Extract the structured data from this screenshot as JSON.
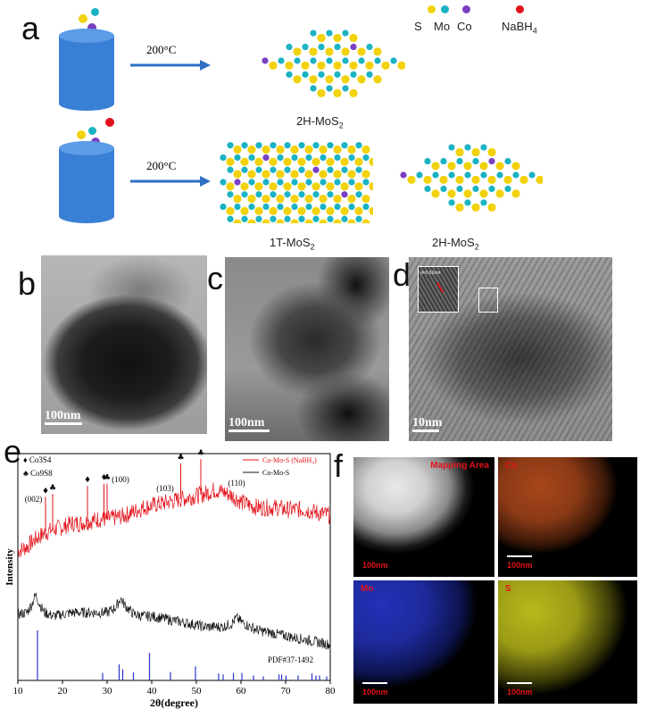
{
  "panel_a": {
    "letter": "a",
    "legend": {
      "s": "S",
      "mo": "Mo",
      "co": "Co",
      "nabh4": "NaBH",
      "nabh4_sub": "4"
    },
    "row1": {
      "temp": "200°C",
      "product_label": "2H-MoS",
      "product_sub": "2"
    },
    "row2": {
      "temp": "200°C",
      "product1_label": "1T-MoS",
      "product1_sub": "2",
      "product2_label": "2H-MoS",
      "product2_sub": "2"
    },
    "colors": {
      "S": "#f2d20c",
      "Mo": "#1ab3c4",
      "Co": "#7a3fc2",
      "NaBH4": "#e3121a",
      "cylinder": "#3a7fd6",
      "arrow": "#2f6fc4"
    }
  },
  "panel_b": {
    "letter": "b",
    "scale": "100nm"
  },
  "panel_c": {
    "letter": "c",
    "scale": "100nm"
  },
  "panel_d": {
    "letter": "d",
    "scale": "10nm",
    "inset_label": "d=0.62nm"
  },
  "panel_e": {
    "letter": "e"
  },
  "panel_f": {
    "letter": "f",
    "maps": [
      {
        "title": "Mapping Area",
        "scale": "100nm",
        "tint": "gray"
      },
      {
        "title": "Co",
        "scale": "100nm",
        "tint": "#c4531a"
      },
      {
        "title": "Mo",
        "scale": "100nm",
        "tint": "#2a35c9"
      },
      {
        "title": "S",
        "scale": "100nm",
        "tint": "#c8c81a"
      }
    ]
  },
  "chart_data": {
    "type": "line",
    "xlabel": "2θ(degree)",
    "ylabel": "Intensity",
    "xlim": [
      10,
      80
    ],
    "xticks": [
      10,
      20,
      30,
      40,
      50,
      60,
      70,
      80
    ],
    "series": [
      {
        "name": "Co-Mo-S (NaBH₄)",
        "color": "#e3121a",
        "x": [
          10,
          12,
          14,
          16,
          18,
          20,
          22,
          24,
          26,
          28,
          30,
          32,
          34,
          36,
          38,
          40,
          42,
          44,
          46,
          48,
          50,
          52,
          54,
          56,
          58,
          60,
          62,
          64,
          66,
          68,
          70,
          72,
          74,
          76,
          78,
          80
        ],
        "y": [
          0.46,
          0.48,
          0.52,
          0.55,
          0.57,
          0.58,
          0.6,
          0.6,
          0.61,
          0.62,
          0.62,
          0.63,
          0.64,
          0.66,
          0.68,
          0.69,
          0.7,
          0.71,
          0.72,
          0.73,
          0.74,
          0.75,
          0.77,
          0.76,
          0.74,
          0.71,
          0.69,
          0.68,
          0.68,
          0.68,
          0.67,
          0.67,
          0.67,
          0.66,
          0.65,
          0.64
        ]
      },
      {
        "name": "Co-Mo-S",
        "color": "#111111",
        "x": [
          10,
          12,
          13,
          14,
          15,
          16,
          18,
          20,
          22,
          24,
          26,
          28,
          30,
          32,
          33,
          34,
          36,
          38,
          40,
          42,
          44,
          46,
          48,
          50,
          52,
          54,
          56,
          58,
          59,
          60,
          62,
          64,
          66,
          68,
          70,
          72,
          74,
          76,
          78,
          80
        ],
        "y": [
          0.26,
          0.27,
          0.31,
          0.37,
          0.31,
          0.27,
          0.25,
          0.26,
          0.27,
          0.27,
          0.27,
          0.27,
          0.27,
          0.3,
          0.35,
          0.31,
          0.26,
          0.25,
          0.25,
          0.24,
          0.23,
          0.22,
          0.21,
          0.2,
          0.19,
          0.19,
          0.19,
          0.21,
          0.24,
          0.22,
          0.19,
          0.17,
          0.16,
          0.15,
          0.14,
          0.13,
          0.12,
          0.11,
          0.1,
          0.09
        ]
      }
    ],
    "reference": {
      "name": "PDF#37-1492",
      "lines": [
        {
          "x": 14.4,
          "h": 1.0
        },
        {
          "x": 29.0,
          "h": 0.15
        },
        {
          "x": 32.7,
          "h": 0.32
        },
        {
          "x": 33.5,
          "h": 0.22
        },
        {
          "x": 35.9,
          "h": 0.16
        },
        {
          "x": 39.5,
          "h": 0.55
        },
        {
          "x": 44.2,
          "h": 0.17
        },
        {
          "x": 49.8,
          "h": 0.28
        },
        {
          "x": 55.0,
          "h": 0.14
        },
        {
          "x": 56.0,
          "h": 0.12
        },
        {
          "x": 58.3,
          "h": 0.15
        },
        {
          "x": 60.2,
          "h": 0.15
        },
        {
          "x": 62.8,
          "h": 0.1
        },
        {
          "x": 65.0,
          "h": 0.08
        },
        {
          "x": 68.5,
          "h": 0.12
        },
        {
          "x": 69.1,
          "h": 0.12
        },
        {
          "x": 70.1,
          "h": 0.1
        },
        {
          "x": 72.8,
          "h": 0.1
        },
        {
          "x": 75.9,
          "h": 0.14
        },
        {
          "x": 76.8,
          "h": 0.1
        },
        {
          "x": 77.6,
          "h": 0.1
        },
        {
          "x": 79.2,
          "h": 0.08
        }
      ]
    },
    "markers": {
      "co3s4_sym": "♦",
      "co3s4_label": "Co",
      "co3s4_sub1": "3",
      "co3s4_mid": "S",
      "co3s4_sub2": "4",
      "co9s8_sym": "♣",
      "co9s8_label": "Co",
      "co9s8_sub1": "9",
      "co9s8_mid": "S",
      "co9s8_sub2": "8",
      "peaks": [
        {
          "x": 16.2,
          "sym": "♦"
        },
        {
          "x": 17.8,
          "sym": "♣"
        },
        {
          "x": 25.6,
          "sym": "♦"
        },
        {
          "x": 29.3,
          "sym": "♦"
        },
        {
          "x": 30.0,
          "sym": "♣"
        },
        {
          "x": 46.5,
          "sym": "♣"
        },
        {
          "x": 51.0,
          "sym": "♣"
        }
      ]
    },
    "annotations": [
      {
        "text": "(002)",
        "x": 13.5
      },
      {
        "text": "(100)",
        "x": 33.0
      },
      {
        "text": "(103)",
        "x": 43.0
      },
      {
        "text": "(110)",
        "x": 59.0
      }
    ]
  }
}
